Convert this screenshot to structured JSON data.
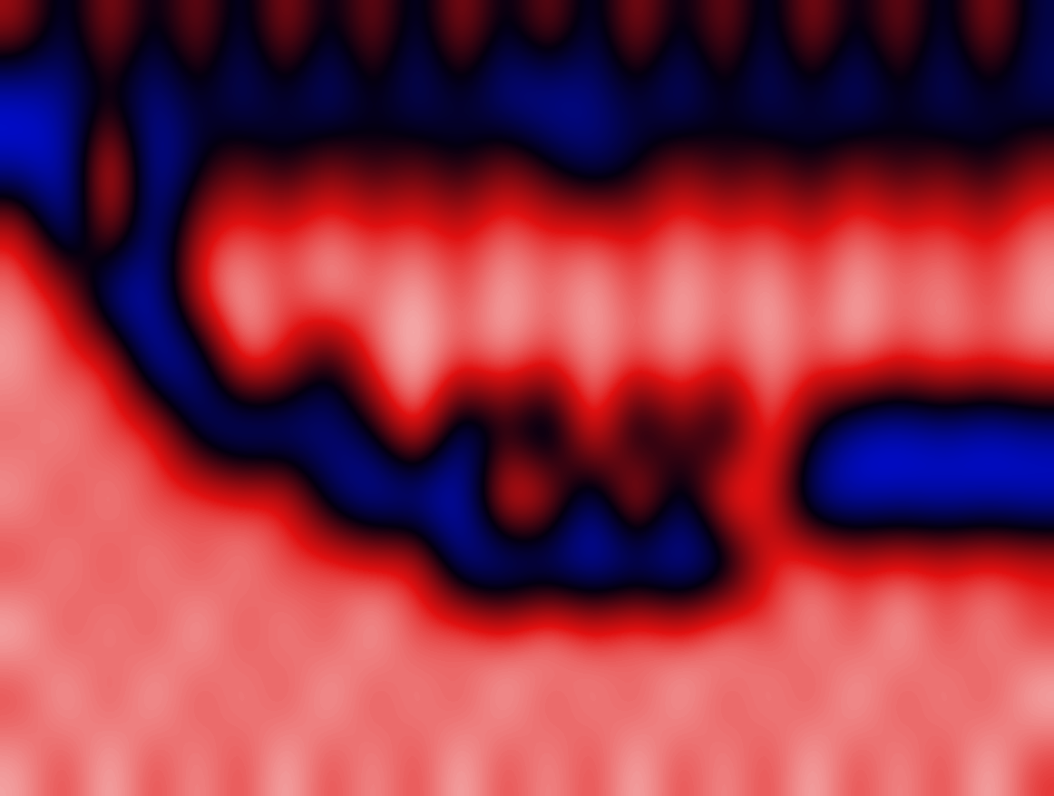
{
  "chart_data": {
    "type": "heatmap",
    "tick_labels": false,
    "color_range": [
      -1,
      1
    ],
    "cells": [
      [
        0.3,
        -0.5,
        0.4,
        -0.4,
        0.3,
        -0.5,
        0.4,
        -0.4,
        0.3,
        -0.5,
        0.4,
        -0.4,
        0.3,
        -0.5,
        0.4,
        -0.4,
        0.3,
        -0.5,
        0.4,
        -0.4,
        0.3,
        -0.5,
        0.4,
        -0.4
      ],
      [
        -0.9,
        -0.6,
        -0.2,
        -0.7,
        -0.2,
        -0.6,
        -0.3,
        -0.7,
        -0.2,
        -0.6,
        -0.3,
        -0.7,
        -0.8,
        -0.6,
        -0.3,
        -0.7,
        -0.2,
        -0.6,
        -0.3,
        -0.7,
        -0.2,
        -0.6,
        -0.3,
        -0.5
      ],
      [
        -0.8,
        -0.9,
        0.9,
        -0.9,
        -0.3,
        0.1,
        -0.3,
        0.2,
        -0.2,
        0.1,
        -0.3,
        0.2,
        -0.2,
        -0.6,
        -0.3,
        0.2,
        -0.2,
        0.1,
        -0.3,
        0.2,
        -0.2,
        0.1,
        -0.3,
        0.2
      ],
      [
        0.5,
        -0.9,
        0.5,
        -0.8,
        0.4,
        0.6,
        0.5,
        0.7,
        0.5,
        0.6,
        0.4,
        0.7,
        0.5,
        0.6,
        0.4,
        0.7,
        0.5,
        0.6,
        0.4,
        0.7,
        0.5,
        0.6,
        0.4,
        0.7
      ],
      [
        0.7,
        0.5,
        -0.9,
        -0.8,
        0.6,
        0.9,
        0.5,
        0.9,
        0.6,
        0.9,
        0.5,
        0.9,
        0.6,
        0.9,
        0.5,
        0.9,
        0.6,
        0.9,
        0.5,
        0.9,
        0.6,
        0.8,
        0.5,
        0.8
      ],
      [
        0.8,
        0.5,
        0.7,
        -0.9,
        -0.8,
        0.8,
        0.5,
        -0.4,
        0.7,
        0.9,
        0.6,
        0.8,
        0.5,
        0.8,
        0.6,
        0.8,
        0.5,
        0.8,
        0.6,
        0.8,
        0.5,
        0.7,
        0.6,
        0.7
      ],
      [
        0.6,
        0.8,
        0.5,
        0.7,
        -0.5,
        -0.9,
        -0.8,
        -0.6,
        -0.3,
        0.9,
        -0.8,
        -0.2,
        -0.9,
        0.9,
        -0.7,
        0.2,
        -0.6,
        0.8,
        -0.2,
        -0.8,
        -0.9,
        -0.7,
        -0.9,
        -0.7
      ],
      [
        0.8,
        0.5,
        0.8,
        0.5,
        0.7,
        0.5,
        0.6,
        -0.5,
        -0.9,
        -0.9,
        -0.9,
        0.9,
        0.6,
        -0.8,
        0.9,
        -0.6,
        0.9,
        0.5,
        -0.8,
        -0.9,
        -0.8,
        -0.9,
        -0.8,
        -0.9
      ],
      [
        0.5,
        0.8,
        0.5,
        0.8,
        0.5,
        0.8,
        0.5,
        0.7,
        0.5,
        0.6,
        -0.8,
        -0.9,
        -0.8,
        -0.9,
        -0.8,
        -0.9,
        -0.7,
        0.5,
        0.7,
        0.5,
        0.6,
        0.5,
        0.6,
        0.5
      ],
      [
        0.9,
        0.5,
        0.8,
        0.5,
        0.9,
        0.5,
        0.8,
        0.5,
        0.9,
        0.5,
        0.8,
        0.5,
        0.9,
        0.5,
        0.8,
        0.5,
        0.9,
        0.5,
        0.8,
        0.5,
        0.9,
        0.5,
        0.8,
        0.5
      ],
      [
        0.5,
        0.9,
        0.5,
        0.9,
        0.5,
        0.8,
        0.5,
        0.9,
        0.5,
        0.8,
        0.5,
        0.9,
        0.5,
        0.8,
        0.5,
        0.9,
        0.5,
        0.8,
        0.5,
        0.9,
        0.5,
        0.8,
        0.5,
        0.9
      ],
      [
        0.8,
        0.5,
        0.9,
        0.5,
        0.8,
        0.5,
        0.9,
        0.5,
        0.8,
        0.5,
        0.9,
        0.5,
        0.8,
        0.5,
        0.9,
        0.5,
        0.8,
        0.5,
        0.9,
        0.5,
        0.8,
        0.5,
        0.9,
        0.5
      ]
    ]
  }
}
